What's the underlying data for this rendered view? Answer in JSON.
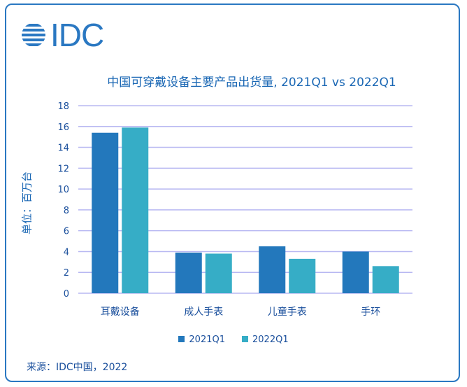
{
  "logo": {
    "text": "IDC",
    "color": "#2a78c2"
  },
  "chart_data": {
    "type": "bar",
    "title": "中国可穿戴设备主要产品出货量, 2021Q1 vs 2022Q1",
    "ylabel": "单位：百万台",
    "xlabel": "",
    "categories": [
      "耳戴设备",
      "成人手表",
      "儿童手表",
      "手环"
    ],
    "series": [
      {
        "name": "2021Q1",
        "color": "#2378bc",
        "values": [
          15.4,
          3.9,
          4.5,
          4.0
        ]
      },
      {
        "name": "2022Q1",
        "color": "#36adc6",
        "values": [
          15.9,
          3.8,
          3.3,
          2.6
        ]
      }
    ],
    "ylim": [
      0,
      18
    ],
    "yticks": [
      "0",
      "2",
      "4",
      "6",
      "8",
      "10",
      "12",
      "14",
      "16",
      "18"
    ],
    "grid": true,
    "legend": "bottom"
  },
  "source": "来源：IDC中国，2022"
}
